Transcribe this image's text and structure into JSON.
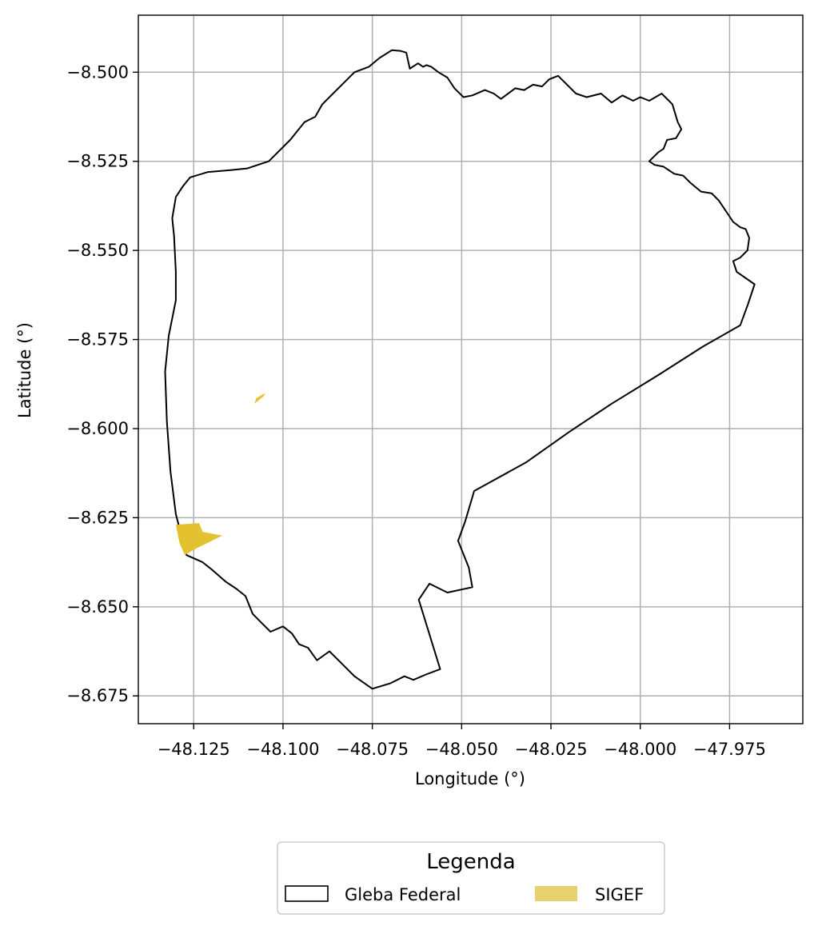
{
  "chart_data": {
    "type": "map",
    "xlabel": "Longitude (°)",
    "ylabel": "Latitude (°)",
    "xlim": [
      -48.1405,
      -47.9545
    ],
    "ylim": [
      -8.6828,
      -8.484
    ],
    "grid": true,
    "x_ticks": [
      {
        "value": -48.125,
        "label": "−48.125"
      },
      {
        "value": -48.1,
        "label": "−48.100"
      },
      {
        "value": -48.075,
        "label": "−48.075"
      },
      {
        "value": -48.05,
        "label": "−48.050"
      },
      {
        "value": -48.025,
        "label": "−48.025"
      },
      {
        "value": -48.0,
        "label": "−48.000"
      },
      {
        "value": -47.975,
        "label": "−47.975"
      }
    ],
    "y_ticks": [
      {
        "value": -8.5,
        "label": "−8.500"
      },
      {
        "value": -8.525,
        "label": "−8.525"
      },
      {
        "value": -8.55,
        "label": "−8.550"
      },
      {
        "value": -8.575,
        "label": "−8.575"
      },
      {
        "value": -8.6,
        "label": "−8.600"
      },
      {
        "value": -8.625,
        "label": "−8.625"
      },
      {
        "value": -8.65,
        "label": "−8.650"
      },
      {
        "value": -8.675,
        "label": "−8.675"
      }
    ],
    "legend": {
      "title": "Legenda",
      "placement": "bottom-center",
      "entries": [
        {
          "label": "Gleba Federal",
          "style": "outline",
          "color": "#000000"
        },
        {
          "label": "SIGEF",
          "style": "fill",
          "color": "#e8d26e"
        }
      ]
    },
    "layers": [
      {
        "name": "Gleba Federal",
        "stroke": "#000000",
        "fill": "none",
        "coordinates": [
          [
            -48.0672,
            -8.494
          ],
          [
            -48.0655,
            -8.4945
          ],
          [
            -48.0645,
            -8.499
          ],
          [
            -48.0622,
            -8.4975
          ],
          [
            -48.0608,
            -8.4985
          ],
          [
            -48.0598,
            -8.498
          ],
          [
            -48.0585,
            -8.4985
          ],
          [
            -48.0565,
            -8.5
          ],
          [
            -48.054,
            -8.5015
          ],
          [
            -48.052,
            -8.5045
          ],
          [
            -48.0495,
            -8.507
          ],
          [
            -48.047,
            -8.5065
          ],
          [
            -48.0435,
            -8.505
          ],
          [
            -48.041,
            -8.506
          ],
          [
            -48.039,
            -8.5075
          ],
          [
            -48.035,
            -8.5045
          ],
          [
            -48.0325,
            -8.505
          ],
          [
            -48.03,
            -8.5035
          ],
          [
            -48.0275,
            -8.504
          ],
          [
            -48.0255,
            -8.502
          ],
          [
            -48.023,
            -8.501
          ],
          [
            -48.021,
            -8.503
          ],
          [
            -48.018,
            -8.506
          ],
          [
            -48.015,
            -8.507
          ],
          [
            -48.011,
            -8.506
          ],
          [
            -48.008,
            -8.5085
          ],
          [
            -48.005,
            -8.5065
          ],
          [
            -48.002,
            -8.508
          ],
          [
            -48.0,
            -8.507
          ],
          [
            -47.9975,
            -8.508
          ],
          [
            -47.994,
            -8.506
          ],
          [
            -47.991,
            -8.509
          ],
          [
            -47.9895,
            -8.514
          ],
          [
            -47.9885,
            -8.516
          ],
          [
            -47.99,
            -8.5185
          ],
          [
            -47.9925,
            -8.519
          ],
          [
            -47.9935,
            -8.5215
          ],
          [
            -47.995,
            -8.5225
          ],
          [
            -47.9975,
            -8.525
          ],
          [
            -47.996,
            -8.526
          ],
          [
            -47.9935,
            -8.5265
          ],
          [
            -47.9905,
            -8.5285
          ],
          [
            -47.988,
            -8.529
          ],
          [
            -47.986,
            -8.531
          ],
          [
            -47.983,
            -8.5335
          ],
          [
            -47.98,
            -8.534
          ],
          [
            -47.978,
            -8.536
          ],
          [
            -47.976,
            -8.539
          ],
          [
            -47.974,
            -8.542
          ],
          [
            -47.972,
            -8.5435
          ],
          [
            -47.9705,
            -8.544
          ],
          [
            -47.9695,
            -8.5465
          ],
          [
            -47.97,
            -8.55
          ],
          [
            -47.972,
            -8.552
          ],
          [
            -47.974,
            -8.553
          ],
          [
            -47.973,
            -8.556
          ],
          [
            -47.968,
            -8.5595
          ],
          [
            -47.97,
            -8.5655
          ],
          [
            -47.972,
            -8.571
          ],
          [
            -47.9825,
            -8.577
          ],
          [
            -47.995,
            -8.585
          ],
          [
            -48.008,
            -8.593
          ],
          [
            -48.02,
            -8.601
          ],
          [
            -48.032,
            -8.6095
          ],
          [
            -48.0465,
            -8.6175
          ],
          [
            -48.049,
            -8.626
          ],
          [
            -48.051,
            -8.6315
          ],
          [
            -48.048,
            -8.639
          ],
          [
            -48.047,
            -8.6445
          ],
          [
            -48.054,
            -8.646
          ],
          [
            -48.059,
            -8.6435
          ],
          [
            -48.062,
            -8.648
          ],
          [
            -48.056,
            -8.6675
          ],
          [
            -48.06,
            -8.669
          ],
          [
            -48.0635,
            -8.6705
          ],
          [
            -48.066,
            -8.6695
          ],
          [
            -48.07,
            -8.6715
          ],
          [
            -48.075,
            -8.673
          ],
          [
            -48.08,
            -8.6695
          ],
          [
            -48.0835,
            -8.666
          ],
          [
            -48.087,
            -8.6625
          ],
          [
            -48.0905,
            -8.665
          ],
          [
            -48.093,
            -8.6615
          ],
          [
            -48.0955,
            -8.6605
          ],
          [
            -48.0975,
            -8.6575
          ],
          [
            -48.1,
            -8.6555
          ],
          [
            -48.1035,
            -8.657
          ],
          [
            -48.106,
            -8.6545
          ],
          [
            -48.1085,
            -8.652
          ],
          [
            -48.1105,
            -8.647
          ],
          [
            -48.113,
            -8.645
          ],
          [
            -48.116,
            -8.643
          ],
          [
            -48.12,
            -8.6395
          ],
          [
            -48.1225,
            -8.6375
          ],
          [
            -48.127,
            -8.6355
          ],
          [
            -48.13,
            -8.624
          ],
          [
            -48.1315,
            -8.612
          ],
          [
            -48.1325,
            -8.598
          ],
          [
            -48.133,
            -8.584
          ],
          [
            -48.132,
            -8.574
          ],
          [
            -48.13,
            -8.564
          ],
          [
            -48.13,
            -8.556
          ],
          [
            -48.1305,
            -8.546
          ],
          [
            -48.131,
            -8.541
          ],
          [
            -48.13,
            -8.535
          ],
          [
            -48.128,
            -8.532
          ],
          [
            -48.126,
            -8.5295
          ],
          [
            -48.121,
            -8.528
          ],
          [
            -48.115,
            -8.5275
          ],
          [
            -48.11,
            -8.527
          ],
          [
            -48.104,
            -8.525
          ],
          [
            -48.098,
            -8.519
          ],
          [
            -48.094,
            -8.514
          ],
          [
            -48.091,
            -8.5125
          ],
          [
            -48.089,
            -8.509
          ],
          [
            -48.086,
            -8.506
          ],
          [
            -48.083,
            -8.503
          ],
          [
            -48.08,
            -8.5
          ],
          [
            -48.076,
            -8.4985
          ],
          [
            -48.073,
            -8.496
          ],
          [
            -48.0695,
            -8.4938
          ]
        ]
      },
      {
        "name": "SIGEF",
        "fill": "#e3c12f",
        "polygons": [
          [
            [
              -48.108,
              -8.593
            ],
            [
              -48.1055,
              -8.591
            ],
            [
              -48.105,
              -8.59
            ],
            [
              -48.1075,
              -8.5915
            ]
          ],
          [
            [
              -48.13,
              -8.627
            ],
            [
              -48.1235,
              -8.6265
            ],
            [
              -48.1225,
              -8.629
            ],
            [
              -48.117,
              -8.63
            ],
            [
              -48.125,
              -8.634
            ],
            [
              -48.1275,
              -8.6355
            ],
            [
              -48.129,
              -8.632
            ]
          ]
        ]
      }
    ]
  }
}
